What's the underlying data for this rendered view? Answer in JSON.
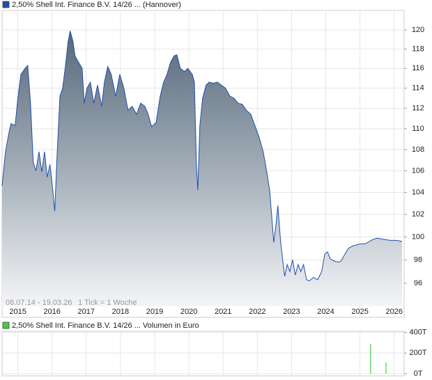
{
  "chart_data": [
    {
      "type": "line",
      "title": "2,50% Shell Int. Finance B.V. 14/26 ... (Hannover)",
      "date_range": "08.07.14 - 19.03.26",
      "tick_note": "1 Tick = 1 Woche",
      "log_scale": true,
      "grid": true,
      "area": true,
      "x": [
        2014.54,
        2014.64,
        2014.74,
        2014.8,
        2014.92,
        2015.0,
        2015.09,
        2015.21,
        2015.29,
        2015.37,
        2015.45,
        2015.53,
        2015.62,
        2015.7,
        2015.78,
        2015.86,
        2015.94,
        2016.02,
        2016.08,
        2016.14,
        2016.23,
        2016.31,
        2016.39,
        2016.47,
        2016.53,
        2016.61,
        2016.67,
        2016.78,
        2016.88,
        2016.94,
        2017.02,
        2017.12,
        2017.22,
        2017.33,
        2017.45,
        2017.53,
        2017.63,
        2017.73,
        2017.86,
        2017.98,
        2018.1,
        2018.22,
        2018.34,
        2018.47,
        2018.59,
        2018.71,
        2018.81,
        2018.91,
        2019.04,
        2019.16,
        2019.26,
        2019.36,
        2019.46,
        2019.57,
        2019.65,
        2019.75,
        2019.87,
        2019.97,
        2020.1,
        2020.16,
        2020.22,
        2020.26,
        2020.32,
        2020.4,
        2020.5,
        2020.59,
        2020.71,
        2020.83,
        2020.95,
        2021.07,
        2021.2,
        2021.32,
        2021.44,
        2021.56,
        2021.68,
        2021.81,
        2021.93,
        2022.05,
        2022.17,
        2022.27,
        2022.36,
        2022.42,
        2022.48,
        2022.54,
        2022.6,
        2022.68,
        2022.74,
        2022.8,
        2022.87,
        2022.95,
        2023.03,
        2023.11,
        2023.19,
        2023.27,
        2023.35,
        2023.44,
        2023.52,
        2023.64,
        2023.76,
        2023.88,
        2023.97,
        2024.05,
        2024.13,
        2024.25,
        2024.37,
        2024.45,
        2024.54,
        2024.66,
        2024.78,
        2024.9,
        2025.02,
        2025.15,
        2025.27,
        2025.39,
        2025.51,
        2025.68,
        2025.88,
        2026.08,
        2026.23
      ],
      "series": [
        {
          "name": "2,50% Shell Int. Finance B.V. 14/26 ... (Hannover)",
          "color": "#1f4fa8",
          "values": [
            104.6,
            107.8,
            109.6,
            110.5,
            110.3,
            113,
            115.4,
            116,
            116.3,
            112.5,
            106.8,
            106,
            107.8,
            105.9,
            107.8,
            105.4,
            106.6,
            104.2,
            102.3,
            107,
            113.2,
            114,
            116.2,
            118.8,
            119.9,
            118.8,
            117.3,
            116.6,
            116,
            112.5,
            114,
            114.6,
            112.5,
            114.3,
            112.2,
            114.6,
            116.2,
            115.4,
            113.2,
            115.4,
            114,
            111.8,
            112.2,
            111.4,
            112.5,
            112.2,
            111.4,
            110.2,
            110.6,
            113.2,
            114.6,
            115.4,
            116.6,
            117.3,
            117.4,
            116,
            115.7,
            116,
            115.4,
            114.6,
            106.5,
            104.2,
            110.3,
            113,
            114.3,
            114.6,
            114.5,
            114.6,
            114.3,
            114,
            113.2,
            113,
            112.5,
            112.4,
            111.8,
            111.4,
            110.3,
            109.2,
            107.8,
            106,
            104.2,
            101.8,
            99.5,
            101,
            102.8,
            99.6,
            98,
            96.6,
            97.6,
            97,
            98,
            96.7,
            97.6,
            97,
            97.6,
            96.3,
            96.2,
            96.5,
            96.3,
            97,
            98.5,
            98.7,
            98.1,
            97.9,
            97.8,
            97.9,
            98.4,
            99,
            99.2,
            99.3,
            99.4,
            99.4,
            99.6,
            99.8,
            99.9,
            99.8,
            99.7,
            99.7,
            99.6
          ]
        }
      ],
      "xlim": [
        2014.54,
        2026.29
      ],
      "xticks": [
        2015,
        2016,
        2017,
        2018,
        2019,
        2020,
        2021,
        2022,
        2023,
        2024,
        2025,
        2026
      ],
      "ylim": [
        94.08,
        122.08
      ],
      "yticks": [
        96,
        98,
        100,
        102,
        104,
        106,
        108,
        110,
        112,
        114,
        116,
        118,
        120
      ]
    },
    {
      "type": "bar",
      "title": "2,50% Shell Int. Finance B.V. 14/26 ... Volumen in Euro",
      "x": [
        2025.31,
        2025.76
      ],
      "series": [
        {
          "name": "2,50% Shell Int. Finance B.V. 14/26 ... Volumen in Euro",
          "color": "#44cc44",
          "values": [
            290,
            110
          ]
        }
      ],
      "xlim": [
        2014.54,
        2026.29
      ],
      "xticks": [
        2015,
        2016,
        2017,
        2018,
        2019,
        2020,
        2021,
        2022,
        2023,
        2024,
        2025,
        2026
      ],
      "ylim": [
        0,
        410
      ],
      "yticks": [
        {
          "value": 0,
          "label": "0T"
        },
        {
          "value": 200,
          "label": "200T"
        },
        {
          "value": 400,
          "label": "400T"
        }
      ]
    }
  ]
}
